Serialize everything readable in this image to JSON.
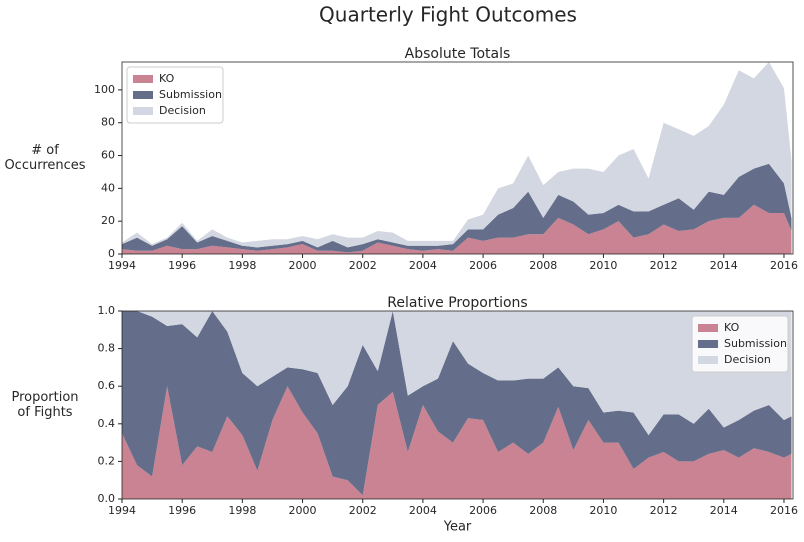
{
  "title": "Quarterly Fight Outcomes",
  "chart_data": [
    {
      "type": "stacked-area",
      "title": "Absolute Totals",
      "ylabel": [
        "# of",
        "Occurrences"
      ],
      "legend": "upper left",
      "x": [
        1994,
        1994.5,
        1995,
        1995.5,
        1996,
        1996.5,
        1997,
        1997.5,
        1998,
        1998.5,
        1999,
        1999.5,
        2000,
        2000.5,
        2001,
        2001.5,
        2002,
        2002.5,
        2003,
        2003.5,
        2004,
        2004.5,
        2005,
        2005.5,
        2006,
        2006.5,
        2007,
        2007.5,
        2008,
        2008.5,
        2009,
        2009.5,
        2010,
        2010.5,
        2011,
        2011.5,
        2012,
        2012.5,
        2013,
        2013.5,
        2014,
        2014.5,
        2015,
        2015.5,
        2016,
        2016.25
      ],
      "series": [
        {
          "name": "KO",
          "color": "#c98392",
          "values": [
            3,
            2,
            2,
            5,
            3,
            3,
            5,
            4,
            3,
            2,
            3,
            4,
            6,
            2,
            2,
            1,
            2,
            7,
            5,
            3,
            2,
            3,
            2,
            10,
            8,
            10,
            10,
            12,
            12,
            22,
            18,
            12,
            15,
            20,
            10,
            12,
            18,
            14,
            15,
            20,
            22,
            22,
            30,
            25,
            25,
            14
          ]
        },
        {
          "name": "Submission",
          "color": "#646d89",
          "values": [
            3,
            8,
            3,
            4,
            14,
            4,
            6,
            4,
            2,
            2,
            2,
            2,
            2,
            2,
            6,
            3,
            4,
            2,
            2,
            2,
            3,
            2,
            4,
            5,
            7,
            14,
            18,
            26,
            10,
            14,
            14,
            12,
            10,
            10,
            16,
            14,
            12,
            20,
            12,
            18,
            14,
            25,
            22,
            30,
            18,
            8
          ]
        },
        {
          "name": "Decision",
          "color": "#d3d7e1",
          "values": [
            1,
            3,
            1,
            1,
            2,
            1,
            4,
            2,
            2,
            4,
            4,
            3,
            3,
            5,
            4,
            6,
            4,
            5,
            6,
            3,
            3,
            3,
            2,
            6,
            9,
            16,
            15,
            22,
            20,
            14,
            20,
            28,
            25,
            30,
            38,
            20,
            50,
            42,
            45,
            40,
            55,
            65,
            55,
            62,
            58,
            35
          ]
        }
      ],
      "xlim": [
        1994,
        2016.3
      ],
      "xticks": [
        1994,
        1996,
        1998,
        2000,
        2002,
        2004,
        2006,
        2008,
        2010,
        2012,
        2014,
        2016
      ],
      "ylim": [
        0,
        117
      ],
      "yticks": [
        0,
        20,
        40,
        60,
        80,
        100
      ]
    },
    {
      "type": "stacked-area",
      "title": "Relative Proportions",
      "ylabel": [
        "Proportion",
        "of Fights"
      ],
      "xlabel": "Year",
      "legend": "upper right",
      "x": [
        1994,
        1994.5,
        1995,
        1995.5,
        1996,
        1996.5,
        1997,
        1997.5,
        1998,
        1998.5,
        1999,
        1999.5,
        2000,
        2000.5,
        2001,
        2001.5,
        2002,
        2002.5,
        2003,
        2003.5,
        2004,
        2004.5,
        2005,
        2005.5,
        2006,
        2006.5,
        2007,
        2007.5,
        2008,
        2008.5,
        2009,
        2009.5,
        2010,
        2010.5,
        2011,
        2011.5,
        2012,
        2012.5,
        2013,
        2013.5,
        2014,
        2014.5,
        2015,
        2015.5,
        2016,
        2016.25
      ],
      "series": [
        {
          "name": "KO",
          "color": "#c98392",
          "values": [
            0.35,
            0.18,
            0.12,
            0.6,
            0.18,
            0.28,
            0.25,
            0.44,
            0.34,
            0.15,
            0.42,
            0.6,
            0.46,
            0.35,
            0.12,
            0.1,
            0.02,
            0.5,
            0.57,
            0.25,
            0.5,
            0.36,
            0.3,
            0.43,
            0.42,
            0.25,
            0.3,
            0.24,
            0.3,
            0.49,
            0.26,
            0.42,
            0.3,
            0.3,
            0.16,
            0.22,
            0.25,
            0.2,
            0.2,
            0.24,
            0.26,
            0.22,
            0.27,
            0.25,
            0.22,
            0.24
          ]
        },
        {
          "name": "Submission",
          "color": "#646d89",
          "values": [
            0.65,
            0.82,
            0.85,
            0.32,
            0.75,
            0.58,
            0.75,
            0.45,
            0.33,
            0.45,
            0.23,
            0.1,
            0.23,
            0.32,
            0.38,
            0.5,
            0.8,
            0.18,
            0.43,
            0.3,
            0.1,
            0.28,
            0.54,
            0.29,
            0.25,
            0.38,
            0.33,
            0.4,
            0.34,
            0.21,
            0.34,
            0.17,
            0.16,
            0.17,
            0.3,
            0.12,
            0.2,
            0.25,
            0.2,
            0.24,
            0.12,
            0.2,
            0.2,
            0.25,
            0.2,
            0.2
          ]
        },
        {
          "name": "Decision",
          "color": "#d3d7e1",
          "values": [
            0,
            0,
            0.03,
            0.08,
            0.07,
            0.14,
            0,
            0.11,
            0.33,
            0.4,
            0.35,
            0.3,
            0.31,
            0.33,
            0.5,
            0.4,
            0.18,
            0.32,
            0,
            0.45,
            0.4,
            0.36,
            0.16,
            0.28,
            0.33,
            0.37,
            0.37,
            0.36,
            0.36,
            0.3,
            0.4,
            0.41,
            0.54,
            0.53,
            0.54,
            0.66,
            0.55,
            0.55,
            0.6,
            0.52,
            0.62,
            0.58,
            0.53,
            0.5,
            0.58,
            0.56
          ]
        }
      ],
      "xlim": [
        1994,
        2016.3
      ],
      "xticks": [
        1994,
        1996,
        1998,
        2000,
        2002,
        2004,
        2006,
        2008,
        2010,
        2012,
        2014,
        2016
      ],
      "ylim": [
        0,
        1
      ],
      "yticks": [
        {
          "value": 0,
          "label": "0.0"
        },
        {
          "value": 0.2,
          "label": "0.2"
        },
        {
          "value": 0.4,
          "label": "0.4"
        },
        {
          "value": 0.6,
          "label": "0.6"
        },
        {
          "value": 0.8,
          "label": "0.8"
        },
        {
          "value": 1,
          "label": "1.0"
        }
      ]
    }
  ]
}
